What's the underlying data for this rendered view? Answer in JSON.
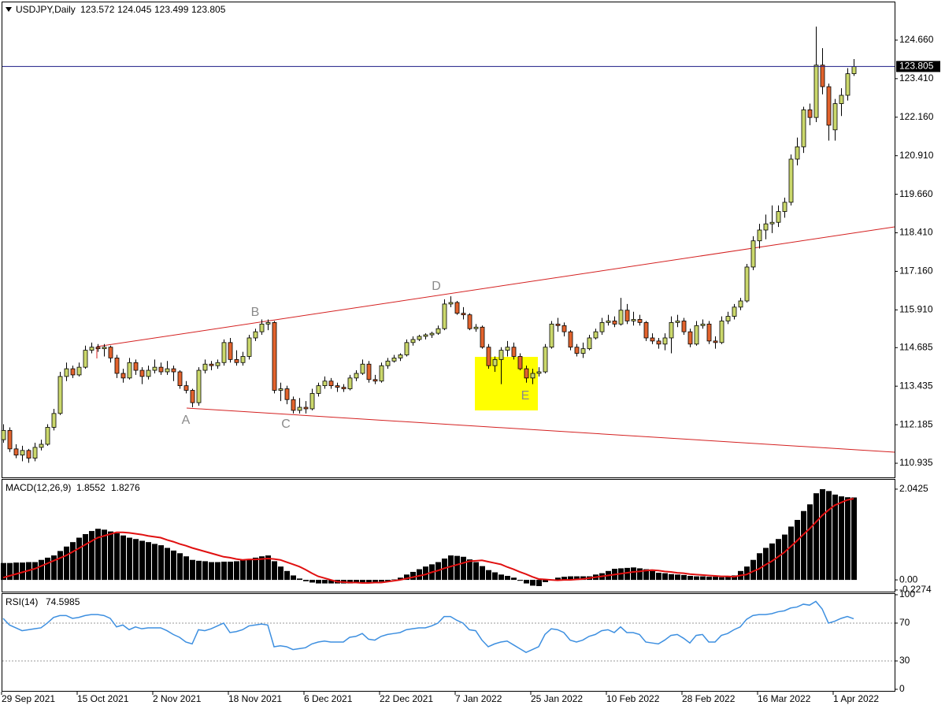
{
  "chart_data": [
    {
      "type": "candlestick",
      "title": "USDJPY,Daily",
      "open": [
        111.7,
        112.0,
        111.4,
        111.2,
        111.35,
        111.1,
        111.45,
        111.55,
        112.1,
        112.55,
        113.75,
        114.0,
        113.8,
        114.05,
        114.6,
        114.7,
        114.65,
        114.7,
        114.35,
        113.85,
        113.7,
        114.2,
        113.95,
        113.75,
        113.95,
        114.05,
        113.9,
        114.0,
        113.9,
        113.45,
        113.3,
        112.9,
        113.95,
        114.15,
        114.1,
        114.2,
        114.85,
        114.3,
        114.2,
        114.4,
        115.0,
        115.2,
        115.45,
        115.5,
        113.3,
        113.35,
        113.0,
        112.65,
        112.75,
        112.7,
        113.2,
        113.45,
        113.6,
        113.45,
        113.4,
        113.35,
        113.7,
        113.85,
        114.15,
        113.65,
        113.6,
        114.1,
        114.25,
        114.35,
        114.45,
        114.85,
        114.95,
        115.05,
        115.1,
        115.15,
        115.3,
        116.1,
        116.15,
        115.8,
        115.75,
        115.3,
        115.35,
        114.7,
        114.1,
        114.3,
        114.6,
        114.7,
        114.4,
        114.0,
        113.7,
        113.85,
        113.9,
        114.7,
        115.45,
        115.4,
        115.2,
        114.7,
        114.5,
        114.65,
        115.0,
        115.2,
        115.5,
        115.55,
        115.45,
        115.9,
        115.55,
        115.6,
        115.5,
        115.0,
        114.9,
        114.8,
        115.0,
        115.5,
        115.55,
        115.2,
        114.8,
        115.4,
        115.45,
        114.9,
        114.85,
        115.55,
        115.7,
        116.0,
        116.2,
        117.3,
        118.15,
        118.5,
        118.7,
        118.75,
        119.1,
        119.4,
        120.8,
        121.2,
        122.4,
        122.15,
        123.85,
        123.15,
        121.75,
        122.6,
        122.87,
        123.572
      ],
      "high": [
        112.2,
        112.1,
        111.55,
        111.5,
        111.4,
        111.6,
        111.7,
        112.2,
        112.7,
        113.9,
        114.2,
        114.1,
        114.2,
        114.75,
        114.85,
        114.8,
        114.8,
        114.75,
        114.45,
        114.0,
        114.35,
        114.3,
        114.05,
        114.1,
        114.3,
        114.2,
        114.25,
        114.1,
        113.95,
        113.6,
        113.35,
        114.05,
        114.3,
        114.25,
        114.3,
        114.95,
        115.0,
        114.6,
        114.55,
        115.1,
        115.3,
        115.6,
        115.6,
        115.55,
        113.55,
        113.45,
        113.1,
        113.05,
        112.95,
        113.35,
        113.55,
        113.75,
        113.7,
        113.55,
        113.5,
        113.8,
        113.95,
        114.3,
        114.25,
        113.8,
        114.2,
        114.35,
        114.45,
        114.5,
        114.95,
        115.05,
        115.1,
        115.15,
        115.2,
        115.4,
        116.25,
        116.35,
        116.2,
        116.0,
        115.8,
        115.45,
        115.4,
        114.8,
        114.4,
        114.7,
        114.9,
        114.85,
        114.5,
        114.1,
        114.0,
        114.05,
        114.8,
        115.55,
        115.65,
        115.5,
        115.25,
        114.8,
        114.85,
        115.1,
        115.3,
        115.65,
        115.75,
        115.7,
        116.3,
        116.1,
        115.85,
        115.75,
        115.55,
        115.15,
        115.0,
        115.15,
        115.7,
        115.75,
        115.65,
        115.3,
        115.55,
        115.6,
        115.55,
        115.05,
        115.7,
        115.85,
        116.1,
        116.3,
        117.4,
        118.3,
        118.7,
        119.0,
        119.3,
        119.3,
        119.55,
        120.95,
        121.5,
        122.5,
        122.6,
        125.1,
        124.4,
        123.25,
        122.75,
        123.1,
        123.75,
        124.045
      ],
      "low": [
        111.6,
        111.3,
        111.1,
        111.0,
        110.95,
        111.0,
        111.35,
        111.5,
        112.0,
        112.5,
        113.6,
        113.7,
        113.75,
        114.0,
        114.5,
        114.55,
        114.4,
        114.2,
        113.7,
        113.55,
        113.65,
        113.8,
        113.5,
        113.65,
        113.85,
        113.8,
        113.8,
        113.6,
        113.35,
        113.2,
        112.75,
        112.8,
        113.85,
        113.95,
        114.0,
        114.1,
        114.2,
        114.1,
        114.1,
        114.3,
        114.9,
        115.1,
        115.25,
        113.2,
        112.95,
        112.85,
        112.55,
        112.55,
        112.55,
        112.65,
        113.1,
        113.35,
        113.35,
        113.25,
        113.25,
        113.3,
        113.6,
        113.8,
        113.55,
        113.5,
        113.55,
        114.0,
        114.2,
        114.25,
        114.4,
        114.75,
        114.9,
        114.95,
        115.0,
        115.1,
        115.25,
        116.0,
        115.75,
        115.6,
        115.25,
        115.2,
        114.65,
        114.0,
        113.9,
        113.5,
        114.4,
        114.3,
        113.95,
        113.55,
        113.5,
        113.75,
        113.85,
        114.65,
        115.2,
        115.05,
        114.6,
        114.4,
        114.35,
        114.6,
        114.95,
        115.1,
        115.4,
        115.35,
        115.4,
        115.45,
        115.4,
        115.4,
        114.9,
        114.8,
        114.65,
        114.6,
        114.5,
        115.35,
        115.1,
        114.7,
        114.75,
        115.3,
        114.8,
        114.65,
        114.8,
        115.45,
        115.6,
        115.9,
        116.15,
        117.2,
        117.9,
        118.2,
        118.4,
        118.6,
        118.9,
        119.3,
        120.6,
        121.0,
        121.9,
        122.0,
        122.9,
        121.4,
        121.4,
        122.2,
        122.7,
        123.499
      ],
      "close": [
        112.0,
        111.4,
        111.2,
        111.35,
        111.1,
        111.45,
        111.55,
        112.1,
        112.55,
        113.75,
        114.0,
        113.8,
        114.05,
        114.6,
        114.7,
        114.65,
        114.7,
        114.35,
        113.85,
        113.7,
        114.2,
        113.95,
        113.75,
        113.95,
        114.05,
        113.9,
        114.0,
        113.9,
        113.45,
        113.3,
        112.9,
        113.95,
        114.15,
        114.1,
        114.2,
        114.85,
        114.3,
        114.2,
        114.4,
        115.0,
        115.2,
        115.45,
        115.5,
        113.3,
        113.35,
        113.0,
        112.65,
        112.75,
        112.7,
        113.2,
        113.45,
        113.6,
        113.45,
        113.4,
        113.35,
        113.7,
        113.85,
        114.15,
        113.65,
        113.6,
        114.1,
        114.25,
        114.35,
        114.45,
        114.85,
        114.95,
        115.05,
        115.1,
        115.15,
        115.3,
        116.1,
        116.15,
        115.8,
        115.75,
        115.3,
        115.35,
        114.7,
        114.1,
        114.3,
        114.6,
        114.7,
        114.4,
        114.0,
        113.7,
        113.85,
        113.9,
        114.7,
        115.45,
        115.4,
        115.2,
        114.7,
        114.5,
        114.65,
        115.0,
        115.2,
        115.5,
        115.55,
        115.45,
        115.9,
        115.55,
        115.6,
        115.5,
        115.0,
        114.9,
        114.8,
        115.0,
        115.5,
        115.55,
        115.2,
        114.8,
        115.4,
        115.45,
        114.9,
        114.85,
        115.55,
        115.7,
        116.0,
        116.2,
        117.3,
        118.15,
        118.5,
        118.7,
        118.75,
        119.1,
        119.4,
        120.8,
        121.2,
        122.4,
        122.15,
        123.85,
        123.15,
        121.9,
        122.6,
        122.87,
        123.57,
        123.805
      ],
      "up_color": "#cbd86c",
      "down_color": "#e2632d",
      "price_line_color": "#1c1c84",
      "ylim": [
        110.476,
        125.885
      ],
      "yticks": [
        {
          "value": 124.66,
          "label": "124.660"
        },
        {
          "value": 123.41,
          "label": "123.410"
        },
        {
          "value": 122.16,
          "label": "122.160"
        },
        {
          "value": 120.91,
          "label": "120.910"
        },
        {
          "value": 119.66,
          "label": "119.660"
        },
        {
          "value": 118.41,
          "label": "118.410"
        },
        {
          "value": 117.16,
          "label": "117.160"
        },
        {
          "value": 115.91,
          "label": "115.910"
        },
        114.685,
        113.435,
        112.185,
        110.935
      ],
      "annotations": [
        "A",
        "B",
        "C",
        "D",
        "E"
      ],
      "grid": false
    },
    {
      "type": "macd",
      "title": "MACD(12,26,9)",
      "histogram": [
        0.38,
        0.38,
        0.39,
        0.39,
        0.4,
        0.4,
        0.45,
        0.5,
        0.55,
        0.65,
        0.75,
        0.85,
        0.95,
        1.03,
        1.1,
        1.15,
        1.13,
        1.09,
        1.05,
        1.0,
        0.95,
        0.92,
        0.88,
        0.85,
        0.81,
        0.78,
        0.72,
        0.66,
        0.6,
        0.53,
        0.45,
        0.43,
        0.42,
        0.4,
        0.4,
        0.41,
        0.41,
        0.42,
        0.45,
        0.47,
        0.5,
        0.53,
        0.55,
        0.42,
        0.3,
        0.2,
        0.1,
        0.03,
        -0.03,
        -0.06,
        -0.08,
        -0.08,
        -0.08,
        -0.08,
        -0.08,
        -0.08,
        -0.07,
        -0.07,
        -0.06,
        -0.05,
        -0.04,
        -0.03,
        0.01,
        0.05,
        0.12,
        0.18,
        0.24,
        0.3,
        0.35,
        0.4,
        0.48,
        0.55,
        0.54,
        0.52,
        0.46,
        0.4,
        0.31,
        0.22,
        0.17,
        0.12,
        0.09,
        0.05,
        -0.02,
        -0.08,
        -0.13,
        -0.14,
        -0.05,
        0,
        0.05,
        0.07,
        0.08,
        0.08,
        0.08,
        0.08,
        0.12,
        0.15,
        0.2,
        0.25,
        0.26,
        0.27,
        0.28,
        0.26,
        0.24,
        0.2,
        0.16,
        0.15,
        0.13,
        0.12,
        0.11,
        0.09,
        0.08,
        0.08,
        0.07,
        0.07,
        0.06,
        0.08,
        0.1,
        0.2,
        0.3,
        0.45,
        0.6,
        0.72,
        0.82,
        0.92,
        1.02,
        1.2,
        1.35,
        1.55,
        1.7,
        1.95,
        2.0425,
        2.0,
        1.92,
        1.88,
        1.86,
        1.8552
      ],
      "signal": [
        0.05,
        0.09,
        0.13,
        0.17,
        0.21,
        0.25,
        0.31,
        0.37,
        0.43,
        0.49,
        0.55,
        0.63,
        0.71,
        0.79,
        0.87,
        0.95,
        0.99,
        1.03,
        1.07,
        1.07,
        1.06,
        1.04,
        1.02,
        0.99,
        0.97,
        0.95,
        0.9,
        0.86,
        0.81,
        0.77,
        0.72,
        0.68,
        0.64,
        0.6,
        0.56,
        0.52,
        0.5,
        0.47,
        0.45,
        0.46,
        0.46,
        0.47,
        0.48,
        0.47,
        0.45,
        0.4,
        0.35,
        0.3,
        0.23,
        0.15,
        0.08,
        0.04,
        0,
        -0.04,
        -0.05,
        -0.06,
        -0.06,
        -0.07,
        -0.07,
        -0.06,
        -0.06,
        -0.04,
        -0.02,
        0,
        0.03,
        0.06,
        0.09,
        0.12,
        0.17,
        0.21,
        0.26,
        0.3,
        0.34,
        0.38,
        0.42,
        0.43,
        0.44,
        0.41,
        0.38,
        0.35,
        0.29,
        0.24,
        0.18,
        0.13,
        0.07,
        0.02,
        0.01,
        0,
        -0.01,
        0,
        0,
        0.01,
        0.02,
        0.04,
        0.06,
        0.08,
        0.1,
        0.12,
        0.14,
        0.16,
        0.18,
        0.19,
        0.21,
        0.22,
        0.21,
        0.19,
        0.18,
        0.16,
        0.15,
        0.13,
        0.12,
        0.11,
        0.1,
        0.09,
        0.08,
        0.08,
        0.07,
        0.1,
        0.12,
        0.19,
        0.25,
        0.34,
        0.42,
        0.52,
        0.62,
        0.75,
        0.88,
        1.02,
        1.15,
        1.3,
        1.45,
        1.57,
        1.68,
        1.74,
        1.8,
        1.8276
      ],
      "histogram_color": "#000000",
      "signal_color": "#e01010",
      "ylim": [
        -0.282,
        2.254
      ],
      "yticks": [
        2.0425,
        {
          "value": 0,
          "label": "0.00"
        },
        -0.2274
      ]
    },
    {
      "type": "rsi",
      "title": "RSI(14)",
      "values": [
        75,
        68,
        65,
        62,
        63,
        64,
        65,
        70,
        76,
        78,
        78,
        75,
        76,
        78,
        79,
        79,
        78,
        75,
        66,
        68,
        63,
        66,
        64,
        65,
        65,
        65,
        62,
        58,
        55,
        50,
        48,
        63,
        62,
        64,
        67,
        70,
        60,
        61,
        63,
        67,
        68,
        69,
        68,
        45,
        46,
        45,
        42,
        43,
        44,
        48,
        50,
        51,
        50,
        50,
        50,
        55,
        56,
        59,
        53,
        52,
        56,
        58,
        59,
        60,
        63,
        64,
        65,
        65,
        67,
        70,
        77,
        77,
        73,
        70,
        63,
        62,
        52,
        45,
        48,
        50,
        51,
        47,
        43,
        39,
        42,
        45,
        58,
        64,
        63,
        60,
        52,
        50,
        52,
        56,
        58,
        62,
        63,
        60,
        66,
        60,
        60,
        58,
        50,
        49,
        48,
        52,
        57,
        58,
        54,
        49,
        57,
        58,
        50,
        50,
        57,
        59,
        63,
        66,
        74,
        78,
        79,
        79,
        80,
        82,
        83,
        86,
        87,
        90,
        89,
        93,
        85,
        70,
        72,
        75,
        77,
        74.5985
      ],
      "color": "#3d8fe0",
      "levels": [
        70,
        30
      ],
      "ylim": [
        -2.5,
        100.8
      ],
      "yticks": [
        100,
        70,
        30,
        0
      ],
      "categories": [
        "29 Sep 2021",
        null,
        null,
        null,
        null,
        null,
        null,
        null,
        null,
        null,
        null,
        null,
        "15 Oct 2021",
        null,
        null,
        null,
        null,
        null,
        null,
        null,
        null,
        null,
        null,
        null,
        "2 Nov 2021",
        null,
        null,
        null,
        null,
        null,
        null,
        null,
        null,
        null,
        null,
        null,
        "18 Nov 2021",
        null,
        null,
        null,
        null,
        null,
        null,
        null,
        null,
        null,
        null,
        null,
        "6 Dec 2021",
        null,
        null,
        null,
        null,
        null,
        null,
        null,
        null,
        null,
        null,
        null,
        "22 Dec 2021",
        null,
        null,
        null,
        null,
        null,
        null,
        null,
        null,
        null,
        null,
        null,
        "7 Jan 2022",
        null,
        null,
        null,
        null,
        null,
        null,
        null,
        null,
        null,
        null,
        null,
        "25 Jan 2022",
        null,
        null,
        null,
        null,
        null,
        null,
        null,
        null,
        null,
        null,
        null,
        "10 Feb 2022",
        null,
        null,
        null,
        null,
        null,
        null,
        null,
        null,
        null,
        null,
        null,
        "28 Feb 2022",
        null,
        null,
        null,
        null,
        null,
        null,
        null,
        null,
        null,
        null,
        null,
        "16 Mar 2022",
        null,
        null,
        null,
        null,
        null,
        null,
        null,
        null,
        null,
        null,
        null,
        "1 Apr 2022",
        null,
        null,
        null
      ]
    }
  ]
}
